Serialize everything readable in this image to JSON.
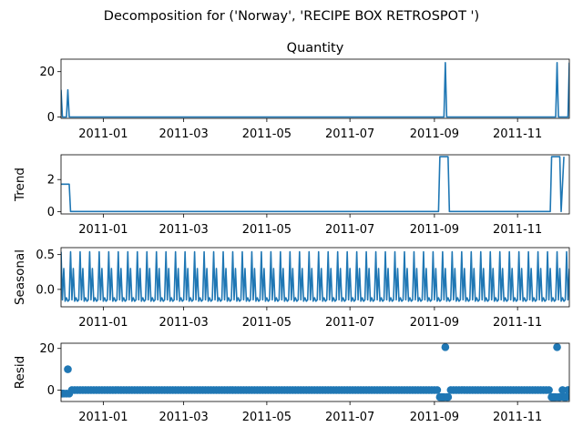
{
  "suptitle": "Decomposition for ('Norway', 'RECIPE BOX RETROSPOT ')",
  "color": "#1f77b4",
  "x_date_range": [
    "2010-12-01",
    "2011-12-09"
  ],
  "x_tick_dates": [
    "2011-01-01",
    "2011-03-01",
    "2011-05-01",
    "2011-07-01",
    "2011-09-01",
    "2011-11-01"
  ],
  "chart_data": [
    {
      "type": "line",
      "title": "Quantity",
      "ylabel": "",
      "ylim": [
        -0.6,
        25.5
      ],
      "yticks": [
        0,
        20
      ],
      "ytick_labels": [
        "0",
        "20"
      ],
      "x": [
        "2010-12-01",
        "2010-12-02",
        "2010-12-05",
        "2010-12-06",
        "2010-12-07",
        "2011-09-08",
        "2011-09-09",
        "2011-09-10",
        "2011-11-29",
        "2011-11-30",
        "2011-12-01",
        "2011-12-08",
        "2011-12-09"
      ],
      "values": [
        12,
        0,
        0,
        12,
        0,
        0,
        24,
        0,
        0,
        24,
        0,
        0,
        24
      ]
    },
    {
      "type": "line",
      "title": "",
      "ylabel": "Trend",
      "ylim": [
        -0.15,
        3.55
      ],
      "yticks": [
        0,
        2
      ],
      "ytick_labels": [
        "0",
        "2"
      ],
      "x": [
        "2010-12-01",
        "2010-12-07",
        "2010-12-08",
        "2011-09-04",
        "2011-09-05",
        "2011-09-11",
        "2011-09-12",
        "2011-11-25",
        "2011-11-26",
        "2011-12-02",
        "2011-12-03",
        "2011-12-05"
      ],
      "values": [
        1.71,
        1.71,
        0,
        0,
        3.43,
        3.43,
        0,
        0,
        3.43,
        3.43,
        0,
        3.43
      ]
    },
    {
      "type": "line",
      "title": "",
      "ylabel": "Seasonal",
      "ylim": [
        -0.25,
        0.6
      ],
      "yticks": [
        0.0,
        0.5
      ],
      "ytick_labels": [
        "0.0",
        "0.5"
      ],
      "period_days": 7,
      "pattern": [
        0.54,
        -0.15,
        0.3,
        -0.17,
        -0.12,
        -0.17,
        -0.15
      ]
    },
    {
      "type": "scatter",
      "title": "",
      "ylabel": "Resid",
      "ylim": [
        -5.5,
        22.5
      ],
      "yticks": [
        0,
        20
      ],
      "ytick_labels": [
        "0",
        "20"
      ],
      "default_value": 0,
      "outliers": [
        {
          "x": "2010-12-01",
          "y": -1.7
        },
        {
          "x": "2010-12-02",
          "y": -1.7
        },
        {
          "x": "2010-12-03",
          "y": -1.7
        },
        {
          "x": "2010-12-05",
          "y": -1.7
        },
        {
          "x": "2010-12-06",
          "y": 10
        },
        {
          "x": "2010-12-07",
          "y": -1.7
        },
        {
          "x": "2011-09-05",
          "y": -3.4
        },
        {
          "x": "2011-09-06",
          "y": -3.4
        },
        {
          "x": "2011-09-07",
          "y": -3.4
        },
        {
          "x": "2011-09-08",
          "y": -3.4
        },
        {
          "x": "2011-09-09",
          "y": 20.6
        },
        {
          "x": "2011-09-10",
          "y": -3.4
        },
        {
          "x": "2011-09-11",
          "y": -3.4
        },
        {
          "x": "2011-11-26",
          "y": -3.4
        },
        {
          "x": "2011-11-27",
          "y": -3.4
        },
        {
          "x": "2011-11-28",
          "y": -3.4
        },
        {
          "x": "2011-11-29",
          "y": -3.4
        },
        {
          "x": "2011-11-30",
          "y": 20.6
        },
        {
          "x": "2011-12-01",
          "y": -3.4
        },
        {
          "x": "2011-12-02",
          "y": -3.4
        },
        {
          "x": "2011-12-04",
          "y": 0
        },
        {
          "x": "2011-12-05",
          "y": -3.4
        },
        {
          "x": "2011-12-06",
          "y": -3.4
        },
        {
          "x": "2011-12-07",
          "y": -3.4
        }
      ]
    }
  ]
}
